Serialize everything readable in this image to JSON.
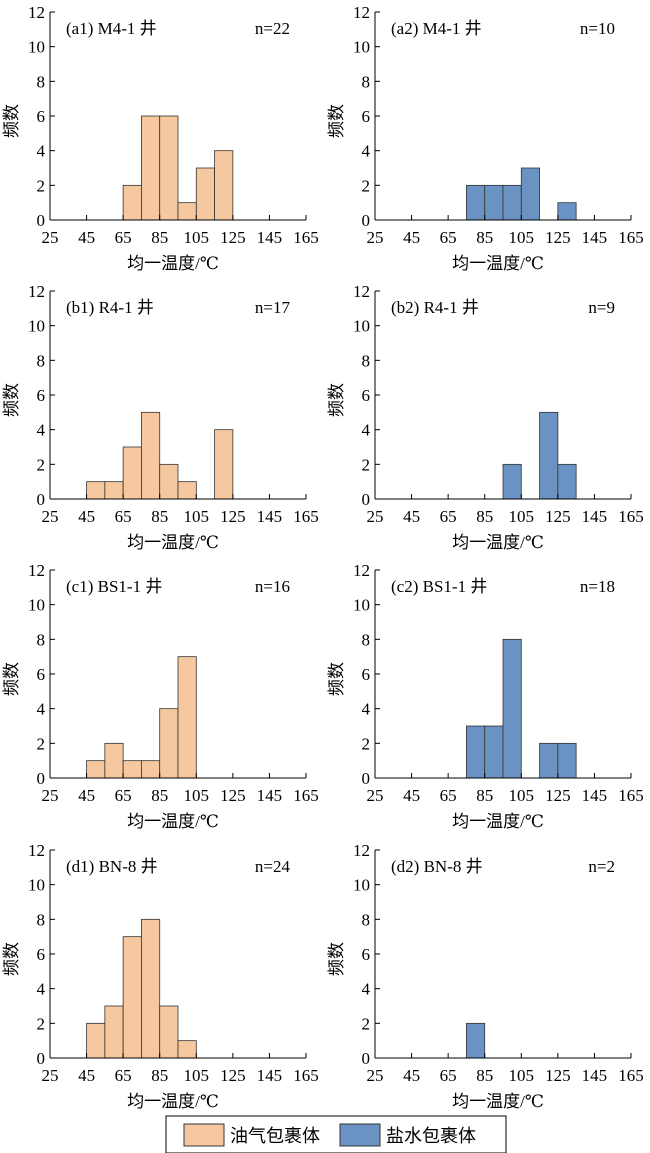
{
  "colors": {
    "oil": "#F6C89F",
    "brine": "#6A93C4"
  },
  "legend": {
    "oil": "油气包裹体",
    "brine": "盐水包裹体"
  },
  "chart_data": [
    {
      "type": "bar",
      "title": "(a1) M4-1 井",
      "n": "n=22",
      "series": "oil",
      "bins": [
        [
          65,
          2
        ],
        [
          75,
          6
        ],
        [
          85,
          6
        ],
        [
          95,
          1
        ],
        [
          105,
          3
        ],
        [
          115,
          4
        ]
      ],
      "xlabel": "均一温度/℃",
      "ylabel": "频数",
      "xlim": [
        25,
        165
      ],
      "ylim": [
        0,
        12
      ],
      "xticks": [
        "25",
        "45",
        "65",
        "85",
        "105",
        "125",
        "145",
        "165"
      ],
      "yticks": [
        "0",
        "2",
        "4",
        "6",
        "8",
        "10",
        "12"
      ]
    },
    {
      "type": "bar",
      "title": "(a2) M4-1 井",
      "n": "n=10",
      "series": "brine",
      "bins": [
        [
          75,
          2
        ],
        [
          85,
          2
        ],
        [
          95,
          2
        ],
        [
          105,
          3
        ],
        [
          125,
          1
        ]
      ],
      "xlabel": "均一温度/℃",
      "ylabel": "频数",
      "xlim": [
        25,
        165
      ],
      "ylim": [
        0,
        12
      ],
      "xticks": [
        "25",
        "45",
        "65",
        "85",
        "105",
        "125",
        "145",
        "165"
      ],
      "yticks": [
        "0",
        "2",
        "4",
        "6",
        "8",
        "10",
        "12"
      ]
    },
    {
      "type": "bar",
      "title": "(b1) R4-1 井",
      "n": "n=17",
      "series": "oil",
      "bins": [
        [
          45,
          1
        ],
        [
          55,
          1
        ],
        [
          65,
          3
        ],
        [
          75,
          5
        ],
        [
          85,
          2
        ],
        [
          95,
          1
        ],
        [
          115,
          4
        ]
      ],
      "xlabel": "均一温度/℃",
      "ylabel": "频数",
      "xlim": [
        25,
        165
      ],
      "ylim": [
        0,
        12
      ],
      "xticks": [
        "25",
        "45",
        "65",
        "85",
        "105",
        "125",
        "145",
        "165"
      ],
      "yticks": [
        "0",
        "2",
        "4",
        "6",
        "8",
        "10",
        "12"
      ]
    },
    {
      "type": "bar",
      "title": "(b2) R4-1 井",
      "n": "n=9",
      "series": "brine",
      "bins": [
        [
          95,
          2
        ],
        [
          115,
          5
        ],
        [
          125,
          2
        ]
      ],
      "xlabel": "均一温度/℃",
      "ylabel": "频数",
      "xlim": [
        25,
        165
      ],
      "ylim": [
        0,
        12
      ],
      "xticks": [
        "25",
        "45",
        "65",
        "85",
        "105",
        "125",
        "145",
        "165"
      ],
      "yticks": [
        "0",
        "2",
        "4",
        "6",
        "8",
        "10",
        "12"
      ]
    },
    {
      "type": "bar",
      "title": "(c1) BS1-1 井",
      "n": "n=16",
      "series": "oil",
      "bins": [
        [
          45,
          1
        ],
        [
          55,
          2
        ],
        [
          65,
          1
        ],
        [
          75,
          1
        ],
        [
          85,
          4
        ],
        [
          95,
          7
        ]
      ],
      "xlabel": "均一温度/℃",
      "ylabel": "频数",
      "xlim": [
        25,
        165
      ],
      "ylim": [
        0,
        12
      ],
      "xticks": [
        "25",
        "45",
        "65",
        "85",
        "105",
        "125",
        "145",
        "165"
      ],
      "yticks": [
        "0",
        "2",
        "4",
        "6",
        "8",
        "10",
        "12"
      ]
    },
    {
      "type": "bar",
      "title": "(c2) BS1-1 井",
      "n": "n=18",
      "series": "brine",
      "bins": [
        [
          75,
          3
        ],
        [
          85,
          3
        ],
        [
          95,
          8
        ],
        [
          115,
          2
        ],
        [
          125,
          2
        ]
      ],
      "xlabel": "均一温度/℃",
      "ylabel": "频数",
      "xlim": [
        25,
        165
      ],
      "ylim": [
        0,
        12
      ],
      "xticks": [
        "25",
        "45",
        "65",
        "85",
        "105",
        "125",
        "145",
        "165"
      ],
      "yticks": [
        "0",
        "2",
        "4",
        "6",
        "8",
        "10",
        "12"
      ]
    },
    {
      "type": "bar",
      "title": "(d1) BN-8 井",
      "n": "n=24",
      "series": "oil",
      "bins": [
        [
          45,
          2
        ],
        [
          55,
          3
        ],
        [
          65,
          7
        ],
        [
          75,
          8
        ],
        [
          85,
          3
        ],
        [
          95,
          1
        ]
      ],
      "xlabel": "均一温度/℃",
      "ylabel": "频数",
      "xlim": [
        25,
        165
      ],
      "ylim": [
        0,
        12
      ],
      "xticks": [
        "25",
        "45",
        "65",
        "85",
        "105",
        "125",
        "145",
        "165"
      ],
      "yticks": [
        "0",
        "2",
        "4",
        "6",
        "8",
        "10",
        "12"
      ]
    },
    {
      "type": "bar",
      "title": "(d2) BN-8 井",
      "n": "n=2",
      "series": "brine",
      "bins": [
        [
          75,
          2
        ]
      ],
      "xlabel": "均一温度/℃",
      "ylabel": "频数",
      "xlim": [
        25,
        165
      ],
      "ylim": [
        0,
        12
      ],
      "xticks": [
        "25",
        "45",
        "65",
        "85",
        "105",
        "125",
        "145",
        "165"
      ],
      "yticks": [
        "0",
        "2",
        "4",
        "6",
        "8",
        "10",
        "12"
      ]
    }
  ]
}
